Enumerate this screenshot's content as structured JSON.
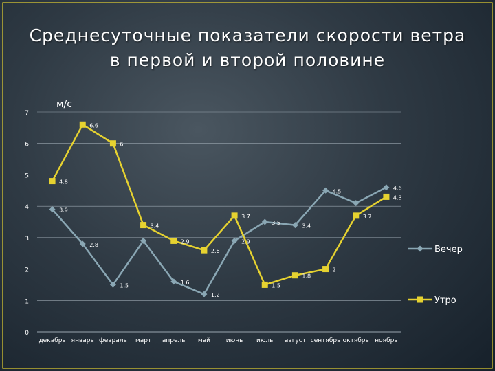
{
  "title_line1": "Среднесуточные показатели скорости ветра",
  "title_line2": "в первой и второй половине",
  "colors": {
    "evening": "#8aa7b4",
    "morning": "#e6d230",
    "text": "#ffffff",
    "grid": "#9aa6b0"
  },
  "chart_data": {
    "type": "line",
    "title": "Среднесуточные показатели скорости ветра в первой и второй половине",
    "ylabel": "м/с",
    "xlabel": "",
    "ylim": [
      0,
      7
    ],
    "yticks": [
      0,
      1,
      2,
      3,
      4,
      5,
      6,
      7
    ],
    "grid": true,
    "legend": "right",
    "categories": [
      "декабрь",
      "январь",
      "февраль",
      "март",
      "апрель",
      "май",
      "июнь",
      "июль",
      "август",
      "сентябрь",
      "октябрь",
      "ноябрь"
    ],
    "series": [
      {
        "name": "Вечер",
        "marker": "diamond",
        "values": [
          3.9,
          2.8,
          1.5,
          2.9,
          1.6,
          1.2,
          2.9,
          3.5,
          3.4,
          4.5,
          4.1,
          4.6
        ],
        "labels": [
          "3.9",
          "2.8",
          "1.5",
          "",
          "1.6",
          "1.2",
          "2.9",
          "3.5",
          "3.4",
          "4.5",
          "",
          "4.6"
        ]
      },
      {
        "name": "Утро",
        "marker": "square",
        "values": [
          4.8,
          6.6,
          6,
          3.4,
          2.9,
          2.6,
          3.7,
          1.5,
          1.8,
          2,
          3.7,
          4.3
        ],
        "labels": [
          "4.8",
          "6.6",
          "6",
          "3.4",
          "2.9",
          "2.6",
          "3.7",
          "1.5",
          "1.8",
          "2",
          "3.7",
          "4.3"
        ]
      }
    ]
  }
}
